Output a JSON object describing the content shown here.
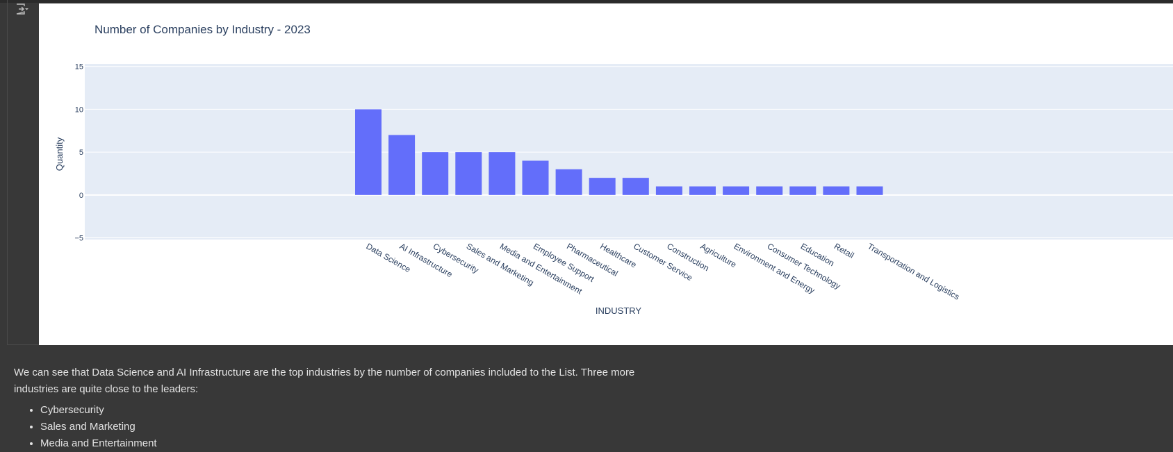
{
  "output_toggle": {
    "icon": "output-toggle-icon"
  },
  "chart_data": {
    "type": "bar",
    "title": "Number of Companies by Industry - 2023",
    "xlabel": "INDUSTRY",
    "ylabel": "Quantity",
    "ylim": [
      -5.2,
      15.3
    ],
    "yticks": [
      -5,
      0,
      5,
      10,
      15
    ],
    "categories": [
      "Data Science",
      "AI Infrastructure",
      "Cybersecurity",
      "Sales and Marketing",
      "Media and Entertainment",
      "Employee Support",
      "Pharmaceutical",
      "Healthcare",
      "Customer Service",
      "Construction",
      "Agriculture",
      "Environment and Energy",
      "Consumer Technology",
      "Education",
      "Retail",
      "Transportation and Logistics"
    ],
    "values": [
      10,
      7,
      5,
      5,
      5,
      4,
      3,
      2,
      2,
      1,
      1,
      1,
      1,
      1,
      1,
      1
    ],
    "grid": true,
    "colors": {
      "bar": "#636efa",
      "plot_bg": "#e5ecf6",
      "text": "#2a3f5f",
      "grid": "#ffffff",
      "paper_bg": "#ffffff"
    }
  },
  "markdown": {
    "paragraph": "We can see that Data Science and AI Infrastructure are the top industries by the number of companies included to the List. Three more industries are quite close to the leaders:",
    "bullets": [
      "Cybersecurity",
      "Sales and Marketing",
      "Media and Entertainment"
    ]
  }
}
